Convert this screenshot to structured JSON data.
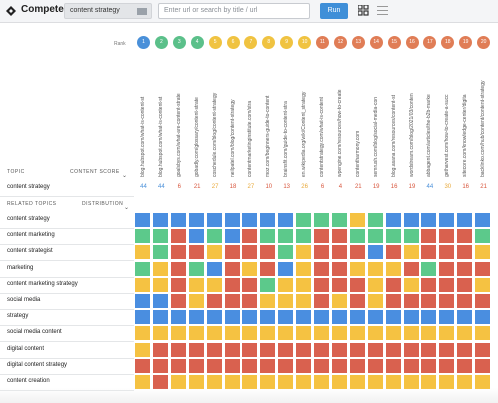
{
  "app": {
    "title": "Compete"
  },
  "toolbar": {
    "keyword": "content strategy",
    "url_placeholder": "Enter url or search by title / url",
    "run_label": "Run"
  },
  "ranks_label": "Rank",
  "ranks": [
    {
      "n": "1",
      "color": "#4a90d9"
    },
    {
      "n": "2",
      "color": "#5bc08a"
    },
    {
      "n": "3",
      "color": "#5bc08a"
    },
    {
      "n": "4",
      "color": "#5bc08a"
    },
    {
      "n": "5",
      "color": "#f0c341"
    },
    {
      "n": "6",
      "color": "#f0c341"
    },
    {
      "n": "7",
      "color": "#f0c341"
    },
    {
      "n": "8",
      "color": "#f0c341"
    },
    {
      "n": "9",
      "color": "#f0c341"
    },
    {
      "n": "10",
      "color": "#f0c341"
    },
    {
      "n": "11",
      "color": "#e07d56"
    },
    {
      "n": "12",
      "color": "#e07d56"
    },
    {
      "n": "13",
      "color": "#e07d56"
    },
    {
      "n": "14",
      "color": "#e07d56"
    },
    {
      "n": "15",
      "color": "#e07d56"
    },
    {
      "n": "16",
      "color": "#e07d56"
    },
    {
      "n": "17",
      "color": "#e07d56"
    },
    {
      "n": "18",
      "color": "#e07d56"
    },
    {
      "n": "19",
      "color": "#e07d56"
    },
    {
      "n": "20",
      "color": "#e07d56"
    }
  ],
  "urls": [
    "blog.hubspot.com/what-is-content-st",
    "blog.hubspot.com/what-is-content-st",
    "goalsbys.com/what-are-content-strate",
    "gobadly.com/glossary/content-strate",
    "coschedule.com/blog/content-strategy",
    "neilpatel.com/blog/content-strategy",
    "contentmarketinginstitute.com/stra",
    "moz.com/beginners-guide-to-content",
    "brainsfit.com/guide-to-content-stra",
    "en.wikipedia.org/wiki/Content_strategy",
    "contentstrategy.com/what-is-content",
    "wpengine.com/resources/how-to-create",
    "contentharmony.com",
    "semrush.com/blog/social-media-con",
    "blog.asana.com/resources/content-st",
    "wordstream.com/blog/2021/03/conten",
    "abbagent.com/articles/the-b2b-marke",
    "getharvest.com/how-to-create-a-succ",
    "sitecore.com/knowledge-center/digita",
    "backlinko.com/hub/content/content-strategy"
  ],
  "headers": {
    "topic": "TOPIC",
    "content_score": "CONTENT SCORE",
    "related_topics": "RELATED TOPICS",
    "distribution": "DISTRIBUTION"
  },
  "topic": "content strategy",
  "scores": [
    {
      "v": "44",
      "color": "#4a90d9"
    },
    {
      "v": "44",
      "color": "#4a90d9"
    },
    {
      "v": "6",
      "color": "#d8573e"
    },
    {
      "v": "21",
      "color": "#d8573e"
    },
    {
      "v": "27",
      "color": "#e8a93a"
    },
    {
      "v": "18",
      "color": "#d8573e"
    },
    {
      "v": "27",
      "color": "#e8a93a"
    },
    {
      "v": "10",
      "color": "#d8573e"
    },
    {
      "v": "13",
      "color": "#d8573e"
    },
    {
      "v": "26",
      "color": "#e8a93a"
    },
    {
      "v": "6",
      "color": "#d8573e"
    },
    {
      "v": "4",
      "color": "#d8573e"
    },
    {
      "v": "21",
      "color": "#d8573e"
    },
    {
      "v": "19",
      "color": "#d8573e"
    },
    {
      "v": "16",
      "color": "#d8573e"
    },
    {
      "v": "19",
      "color": "#d8573e"
    },
    {
      "v": "44",
      "color": "#4a90d9"
    },
    {
      "v": "30",
      "color": "#e8a93a"
    },
    {
      "v": "16",
      "color": "#d8573e"
    },
    {
      "v": "21",
      "color": "#d8573e"
    }
  ],
  "colors": {
    "B": "#4a8ee0",
    "G": "#5cc98b",
    "Y": "#f5c242",
    "R": "#d9614f"
  },
  "related": [
    {
      "label": "content strategy",
      "cells": "BBBBBBBBBGGGYGBBBBBB"
    },
    {
      "label": "content marketing",
      "cells": "GGRBGBRGGGRRGGGGRRRG"
    },
    {
      "label": "content strategist",
      "cells": "YGRRYRRRGYRRRBRYRRRY"
    },
    {
      "label": "marketing",
      "cells": "GYRGBRYRBYRRYYYRGRRR"
    },
    {
      "label": "content marketing strategy",
      "cells": "YYRYYRRGYYRRRYRYRRRY"
    },
    {
      "label": "social media",
      "cells": "BBRYRRRYYYRYRYRRRRRR"
    },
    {
      "label": "strategy",
      "cells": "BBBBBBBBBBBBBBBBBBBB"
    },
    {
      "label": "social media content",
      "cells": "YYYYYYYYYYYYYYYYYYYY"
    },
    {
      "label": "digital content",
      "cells": "YRRRRRRRRRRRRRRRRRRR"
    },
    {
      "label": "digital content strategy",
      "cells": "RRRRRRRRRRRRRRRRRRRR"
    },
    {
      "label": "content creation",
      "cells": "YRYYYYYYYYYYYYYYYYYY"
    }
  ]
}
